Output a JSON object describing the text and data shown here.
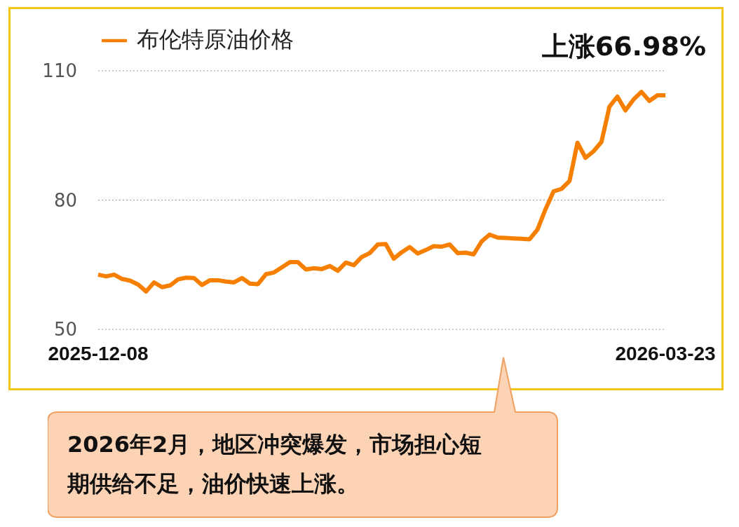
{
  "chart_data": {
    "type": "line",
    "categories": [
      "2025-12-08",
      null,
      null,
      null,
      null,
      null,
      null,
      null,
      null,
      null,
      null,
      null,
      null,
      null,
      null,
      null,
      null,
      null,
      null,
      null,
      null,
      null,
      null,
      null,
      null,
      null,
      null,
      null,
      null,
      null,
      null,
      null,
      null,
      null,
      null,
      null,
      null,
      null,
      null,
      null,
      null,
      null,
      null,
      null,
      null,
      null,
      null,
      null,
      null,
      null,
      null,
      null,
      null,
      null,
      null,
      null,
      null,
      null,
      null,
      null,
      null,
      null,
      null,
      null,
      null,
      null,
      null,
      null,
      null,
      null,
      null,
      "2026-03-23"
    ],
    "series": [
      {
        "name": "布伦特原油价格",
        "color": "#f77f00",
        "values": [
          62.7,
          62.3,
          62.7,
          61.7,
          61.3,
          60.4,
          58.8,
          60.9,
          59.8,
          60.2,
          61.6,
          62.0,
          61.9,
          60.3,
          61.4,
          61.4,
          61.1,
          60.9,
          61.9,
          60.6,
          60.5,
          62.8,
          63.2,
          64.4,
          65.6,
          65.6,
          63.9,
          64.2,
          64.0,
          64.7,
          63.6,
          65.5,
          64.9,
          66.8,
          67.7,
          69.7,
          69.8,
          66.4,
          67.9,
          69.1,
          67.6,
          68.4,
          69.3,
          69.2,
          69.7,
          67.7,
          67.8,
          67.4,
          70.4,
          72.0,
          71.3,
          71.2,
          71.1,
          71.0,
          70.9,
          73.2,
          77.9,
          82.0,
          82.6,
          84.4,
          93.3,
          89.8,
          91.3,
          93.5,
          101.7,
          104.0,
          100.8,
          103.3,
          105.1,
          103.0,
          104.3,
          104.3
        ]
      }
    ],
    "ylim": [
      50,
      110
    ],
    "yticks": [
      50,
      80,
      110
    ],
    "grid": "y",
    "legend": "top left",
    "marker": "none",
    "line_style": "solid",
    "annotations": [
      "上涨66.98%",
      "2026年2月，地区冲突爆发，市场担心短期供给不足，油价快速上涨。"
    ]
  }
}
